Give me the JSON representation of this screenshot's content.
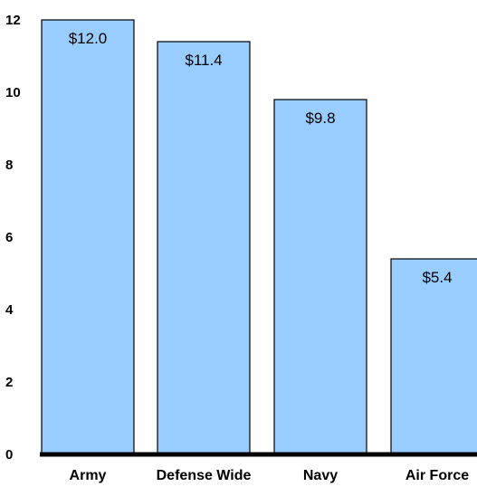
{
  "chart_data": {
    "type": "bar",
    "categories": [
      "Army",
      "Defense Wide",
      "Navy",
      "Air Force"
    ],
    "values": [
      12.0,
      11.4,
      9.8,
      5.4
    ],
    "value_labels": [
      "$12.0",
      "$11.4",
      "$9.8",
      "$5.4"
    ],
    "yticks": [
      "0",
      "2",
      "4",
      "6",
      "8",
      "10",
      "12"
    ],
    "ylim": [
      0,
      12
    ],
    "grid": false,
    "bar_color": "#99ccff",
    "axis_color": "#000000"
  }
}
